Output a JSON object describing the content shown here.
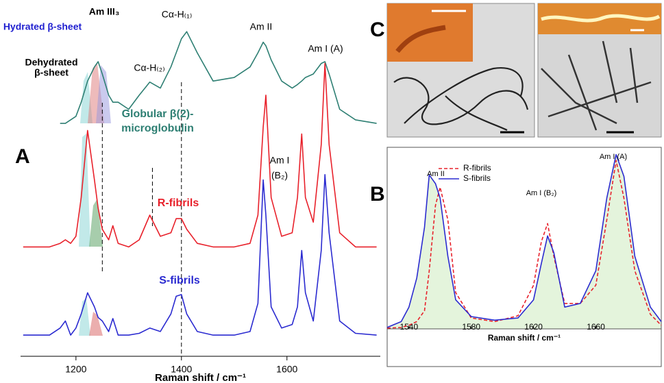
{
  "chart_data": [
    {
      "type": "line",
      "panel_label": "A",
      "xlabel": "Raman shift / cm⁻¹",
      "xlim": [
        1095,
        1777
      ],
      "xticks": [
        1200,
        1400,
        1600
      ],
      "ylim": [
        0,
        100
      ],
      "reference_lines": [
        1250,
        1345,
        1400
      ],
      "annotations": [
        "Am III₃",
        "Hydrated β-sheet",
        "Dehydrated",
        "β-sheet",
        "Cα-H₍₂₎",
        "Cα-H₍₁₎",
        "Am II",
        "Am I (A)",
        "Am I",
        "(B₂)"
      ],
      "x": [
        1100,
        1150,
        1170,
        1180,
        1190,
        1200,
        1210,
        1222,
        1235,
        1242,
        1250,
        1262,
        1270,
        1280,
        1300,
        1320,
        1340,
        1360,
        1380,
        1390,
        1400,
        1410,
        1430,
        1460,
        1500,
        1530,
        1545,
        1555,
        1560,
        1570,
        1590,
        1610,
        1620,
        1628,
        1635,
        1650,
        1665,
        1672,
        1680,
        1700,
        1730,
        1770
      ],
      "series": [
        {
          "name": "Globular β(2)-microglobulin",
          "color": "#2e7f73",
          "values": [
            null,
            null,
            66,
            66,
            67,
            68,
            72,
            78,
            82,
            83.5,
            80,
            74,
            72,
            72,
            70,
            74,
            77.7,
            76,
            82,
            86,
            90,
            92,
            86,
            78,
            79,
            82,
            86,
            89,
            88,
            84,
            78,
            76,
            77,
            78,
            79,
            80,
            83,
            83.5,
            80,
            70,
            67,
            66
          ]
        },
        {
          "name": "R-fibrils",
          "color": "#e8202a",
          "values": [
            31,
            31,
            32,
            33,
            32,
            34,
            45,
            64,
            50,
            42,
            36,
            33,
            37,
            32,
            31,
            33,
            40,
            34,
            35,
            39,
            39,
            36,
            32,
            31,
            31,
            32,
            40,
            65,
            74,
            45,
            34,
            35,
            45,
            63,
            45,
            38,
            60,
            83,
            60,
            35,
            31,
            31
          ]
        },
        {
          "name": "S-fibrils",
          "color": "#2a2ad0",
          "values": [
            6,
            6,
            8,
            10,
            6,
            8,
            12,
            18,
            14,
            11,
            10,
            7,
            10.7,
            6,
            6,
            6.5,
            8,
            7,
            12,
            17,
            17.5,
            12,
            7,
            6,
            6,
            7,
            15,
            50,
            40,
            14,
            8,
            9,
            14,
            30,
            18,
            10,
            30,
            51.5,
            35,
            10,
            6.5,
            6
          ]
        }
      ]
    },
    {
      "type": "line",
      "panel_label": "B",
      "xlabel": "Raman shift / cm⁻¹",
      "xlim": [
        1526,
        1702
      ],
      "xticks": [
        1540,
        1580,
        1620,
        1660
      ],
      "ylim": [
        0,
        1
      ],
      "annotations": [
        "Am II",
        "Am I (B₂)",
        "Am I (A)"
      ],
      "x": [
        1526,
        1535,
        1540,
        1545,
        1550,
        1553,
        1557,
        1560,
        1565,
        1570,
        1580,
        1595,
        1610,
        1620,
        1625,
        1629,
        1633,
        1640,
        1650,
        1660,
        1667,
        1673,
        1678,
        1685,
        1695,
        1702
      ],
      "series": [
        {
          "name": "R-fibrils",
          "color": "#e8202a",
          "dashed": true,
          "values": [
            0.004,
            0.008,
            0.02,
            0.04,
            0.1,
            0.32,
            0.68,
            0.78,
            0.6,
            0.2,
            0.06,
            0.04,
            0.072,
            0.24,
            0.48,
            0.58,
            0.4,
            0.14,
            0.14,
            0.24,
            0.6,
            0.928,
            0.72,
            0.32,
            0.08,
            0.02
          ]
        },
        {
          "name": "S-fibrils",
          "color": "#2a2ad0",
          "fill": "#e4f4dc",
          "values": [
            0.008,
            0.04,
            0.12,
            0.28,
            0.56,
            0.848,
            0.8,
            0.72,
            0.4,
            0.16,
            0.068,
            0.048,
            0.06,
            0.16,
            0.36,
            0.512,
            0.42,
            0.12,
            0.14,
            0.32,
            0.72,
            0.96,
            0.84,
            0.4,
            0.12,
            0.04
          ]
        }
      ]
    }
  ],
  "image_panel": {
    "panel_label": "C"
  }
}
